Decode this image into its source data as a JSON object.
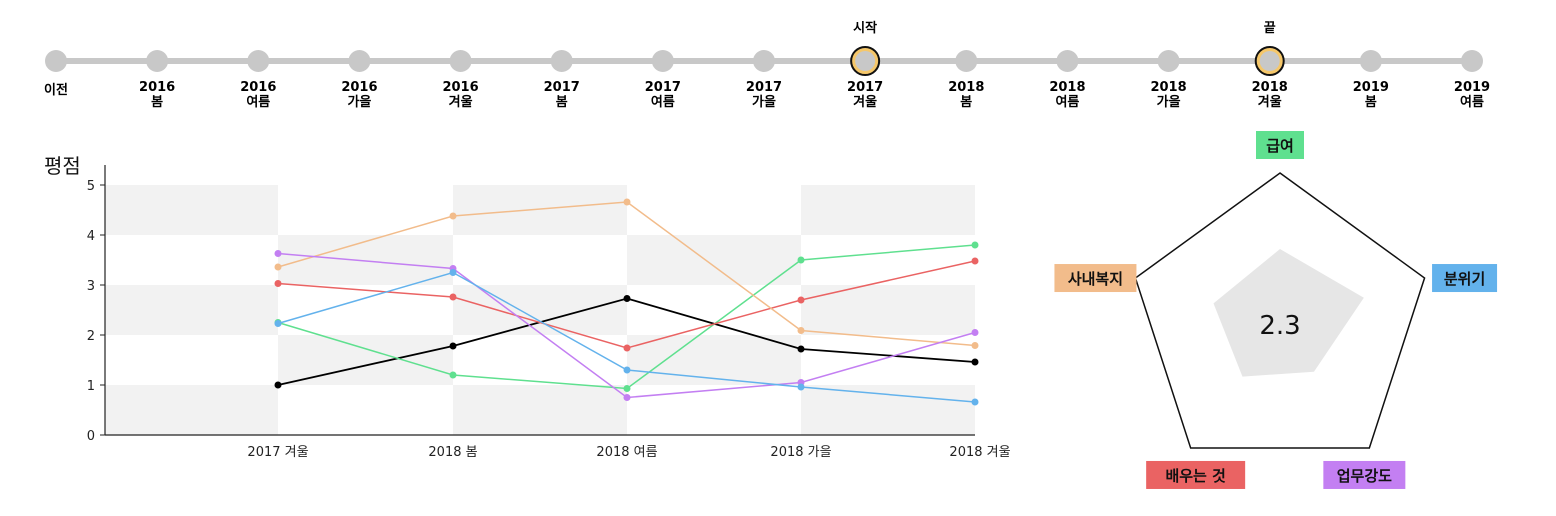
{
  "timeline": {
    "start_label": "시작",
    "end_label": "끝",
    "start_index": 8,
    "end_index": 12,
    "periods": [
      {
        "year": "이전",
        "season": ""
      },
      {
        "year": "2016",
        "season": "봄"
      },
      {
        "year": "2016",
        "season": "여름"
      },
      {
        "year": "2016",
        "season": "가을"
      },
      {
        "year": "2016",
        "season": "겨울"
      },
      {
        "year": "2017",
        "season": "봄"
      },
      {
        "year": "2017",
        "season": "여름"
      },
      {
        "year": "2017",
        "season": "가을"
      },
      {
        "year": "2017",
        "season": "겨울"
      },
      {
        "year": "2018",
        "season": "봄"
      },
      {
        "year": "2018",
        "season": "여름"
      },
      {
        "year": "2018",
        "season": "가을"
      },
      {
        "year": "2018",
        "season": "겨울"
      },
      {
        "year": "2019",
        "season": "봄"
      },
      {
        "year": "2019",
        "season": "여름"
      }
    ],
    "colors": {
      "track": "#c8c8c8",
      "node": "#c8c8c8",
      "selected_ring": "#f5c76a",
      "selected_stroke": "#111111"
    }
  },
  "chart_data": [
    {
      "type": "line",
      "ylabel": "평점",
      "ylim": [
        0,
        5
      ],
      "yticks": [
        0,
        1,
        2,
        3,
        4,
        5
      ],
      "categories": [
        "2017 겨울",
        "2018 봄",
        "2018 여름",
        "2018 가을",
        "2018 겨울"
      ],
      "grid": "checkerboard",
      "series": [
        {
          "color": "#000000",
          "values": [
            1.0,
            1.78,
            2.73,
            1.72,
            1.46
          ]
        },
        {
          "color": "#5fe08f",
          "values": [
            2.25,
            1.2,
            0.93,
            3.5,
            3.8
          ]
        },
        {
          "color": "#ea6363",
          "values": [
            3.03,
            2.76,
            1.74,
            2.7,
            3.48
          ]
        },
        {
          "color": "#f2bc8b",
          "values": [
            3.36,
            4.38,
            4.66,
            2.09,
            1.79
          ]
        },
        {
          "color": "#c37ff2",
          "values": [
            3.63,
            3.33,
            0.75,
            1.05,
            2.05
          ]
        },
        {
          "color": "#63b2ec",
          "values": [
            2.23,
            3.25,
            1.3,
            0.96,
            0.66
          ]
        }
      ]
    },
    {
      "type": "radar",
      "center_value": "2.3",
      "max": 5,
      "axes": [
        {
          "label": "급여",
          "color": "#5fe08f",
          "value": 2.5
        },
        {
          "label": "분위기",
          "color": "#63b2ec",
          "value": 2.9
        },
        {
          "label": "업무강도",
          "color": "#c37ff2",
          "value": 1.9
        },
        {
          "label": "배우는 것",
          "color": "#ea6363",
          "value": 2.1
        },
        {
          "label": "사내복지",
          "color": "#f2bc8b",
          "value": 2.3
        }
      ],
      "fill_color": "#e6e6e6",
      "outline_color": "#111111"
    }
  ]
}
